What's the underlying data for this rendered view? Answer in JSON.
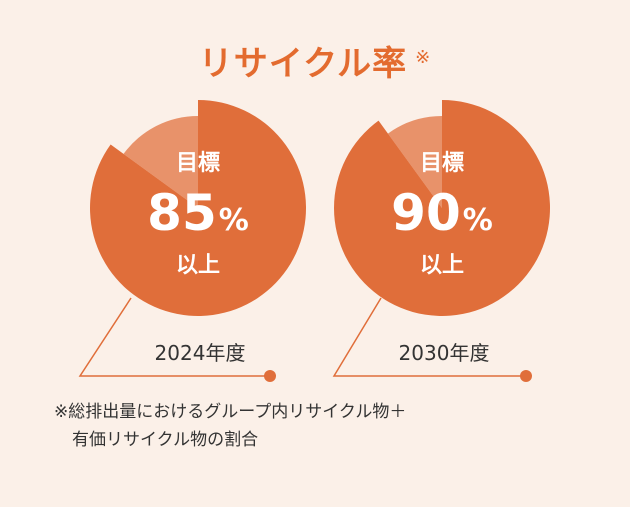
{
  "title": "リサイクル率",
  "title_mark": "※",
  "colors": {
    "background": "#fbf0e8",
    "accent": "#e36b2f",
    "value_fill": "#e06e3a",
    "remainder_fill": "#e8926a",
    "title_text": "#e36b2f",
    "leader_line": "#e06e3a",
    "label_text": "#ffffff",
    "year_text": "#333333"
  },
  "chart_data": [
    {
      "type": "pie",
      "category": "2024年度",
      "label_top": "目標",
      "value_text": "85",
      "unit": "%",
      "label_bottom": "以上",
      "value": 85,
      "remainder": 15
    },
    {
      "type": "pie",
      "category": "2030年度",
      "label_top": "目標",
      "value_text": "90",
      "unit": "%",
      "label_bottom": "以上",
      "value": 90,
      "remainder": 10
    }
  ],
  "footnote": {
    "line1": "※総排出量におけるグループ内リサイクル物＋",
    "line2": "有価リサイクル物の割合"
  }
}
